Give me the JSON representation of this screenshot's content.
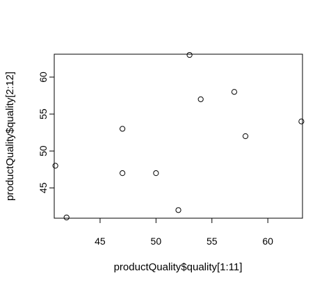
{
  "chart_data": {
    "type": "scatter",
    "title": "",
    "xlabel": "productQuality$quality[1:11]",
    "ylabel": "productQuality$quality[2:12]",
    "xlim": [
      40.9,
      63.1
    ],
    "ylim": [
      40.9,
      63.1
    ],
    "xticks": [
      45,
      50,
      55,
      60
    ],
    "yticks": [
      45,
      50,
      55,
      60
    ],
    "xtick_labels": [
      "45",
      "50",
      "55",
      "60"
    ],
    "ytick_labels": [
      "45",
      "50",
      "55",
      "60"
    ],
    "grid": false,
    "point_shape": "open-circle",
    "points": [
      {
        "x": 41,
        "y": 48
      },
      {
        "x": 42,
        "y": 41
      },
      {
        "x": 47,
        "y": 53
      },
      {
        "x": 47,
        "y": 47
      },
      {
        "x": 50,
        "y": 47
      },
      {
        "x": 52,
        "y": 42
      },
      {
        "x": 53,
        "y": 63
      },
      {
        "x": 54,
        "y": 57
      },
      {
        "x": 57,
        "y": 58
      },
      {
        "x": 58,
        "y": 52
      },
      {
        "x": 63,
        "y": 54
      }
    ]
  }
}
